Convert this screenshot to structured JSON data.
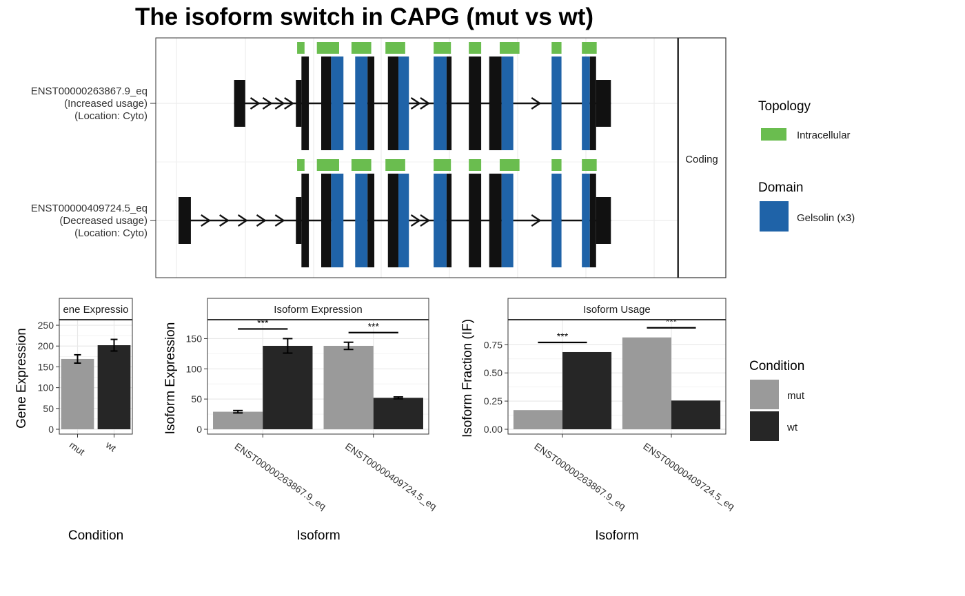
{
  "title": "The isoform switch in CAPG (mut vs wt)",
  "colors": {
    "exon": "#111111",
    "domain": "#1f63a8",
    "topology": "#6abd4f",
    "mut": "#9a9a9a",
    "wt": "#262626",
    "grid": "#e6e6e6",
    "panel_border": "#333333"
  },
  "structure": {
    "facet_label": "Coding",
    "x_range": [
      0,
      7.7
    ],
    "exons": [
      [
        0,
        0.15
      ],
      [
        0.9,
        1.1
      ],
      [
        1.2,
        1.35
      ],
      [
        1.55,
        1.8
      ],
      [
        2.1,
        2.3
      ],
      [
        2.45,
        2.65
      ],
      [
        2.8,
        3.0
      ],
      [
        3.3,
        3.6
      ],
      [
        3.7,
        3.9
      ],
      [
        4.15,
        4.4
      ],
      [
        4.6,
        4.8
      ],
      [
        5.0,
        5.2
      ],
      [
        5.6,
        5.8
      ],
      [
        5.85,
        6.05
      ],
      [
        6.1,
        6.35
      ],
      [
        6.5,
        6.75
      ],
      [
        6.9,
        7.1
      ],
      [
        7.15,
        7.35
      ]
    ],
    "transcripts": [
      {
        "label": "ENST00000263867.9_eq",
        "usage": "(Increased usage)",
        "location": "(Location: Cyto)",
        "start": 0.9,
        "end": 7.0,
        "segments": [
          {
            "x0": 0.9,
            "x1": 1.08,
            "type": "utr"
          },
          {
            "x0": 1.9,
            "x1": 1.99,
            "type": "utr"
          },
          {
            "x0": 1.99,
            "x1": 2.11,
            "type": "cds"
          },
          {
            "x0": 2.31,
            "x1": 2.47,
            "type": "cds"
          },
          {
            "x0": 2.47,
            "x1": 2.67,
            "type": "domain"
          },
          {
            "x0": 2.86,
            "x1": 3.06,
            "type": "domain"
          },
          {
            "x0": 3.06,
            "x1": 3.17,
            "type": "cds"
          },
          {
            "x0": 3.39,
            "x1": 3.56,
            "type": "cds"
          },
          {
            "x0": 3.56,
            "x1": 3.73,
            "type": "domain"
          },
          {
            "x0": 4.13,
            "x1": 4.34,
            "type": "domain"
          },
          {
            "x0": 4.34,
            "x1": 4.42,
            "type": "cds"
          },
          {
            "x0": 4.7,
            "x1": 4.9,
            "type": "cds"
          },
          {
            "x0": 5.03,
            "x1": 5.23,
            "type": "cds"
          },
          {
            "x0": 5.23,
            "x1": 5.42,
            "type": "domain"
          },
          {
            "x0": 6.04,
            "x1": 6.2,
            "type": "domain"
          },
          {
            "x0": 6.53,
            "x1": 6.66,
            "type": "domain"
          },
          {
            "x0": 6.66,
            "x1": 6.76,
            "type": "cds"
          },
          {
            "x0": 6.76,
            "x1": 7.0,
            "type": "utr"
          }
        ],
        "topology": [
          [
            1.92,
            2.04
          ],
          [
            2.24,
            2.6
          ],
          [
            2.8,
            3.12
          ],
          [
            3.35,
            3.67
          ],
          [
            4.13,
            4.41
          ],
          [
            4.7,
            4.9
          ],
          [
            5.2,
            5.52
          ],
          [
            6.04,
            6.2
          ],
          [
            6.53,
            6.77
          ]
        ],
        "arrows": [
          1.3,
          1.5,
          1.7,
          1.85,
          3.9,
          4.05,
          6.2,
          5.85
        ]
      },
      {
        "label": "ENST00000409724.5_eq",
        "usage": "(Decreased usage)",
        "location": "(Location: Cyto)",
        "start": 0.0,
        "end": 7.0,
        "segments": [
          {
            "x0": 0.0,
            "x1": 0.2,
            "type": "utr"
          },
          {
            "x0": 1.9,
            "x1": 1.99,
            "type": "utr"
          },
          {
            "x0": 1.99,
            "x1": 2.11,
            "type": "cds"
          },
          {
            "x0": 2.31,
            "x1": 2.47,
            "type": "cds"
          },
          {
            "x0": 2.47,
            "x1": 2.67,
            "type": "domain"
          },
          {
            "x0": 2.86,
            "x1": 3.06,
            "type": "domain"
          },
          {
            "x0": 3.06,
            "x1": 3.17,
            "type": "cds"
          },
          {
            "x0": 3.39,
            "x1": 3.56,
            "type": "cds"
          },
          {
            "x0": 3.56,
            "x1": 3.73,
            "type": "domain"
          },
          {
            "x0": 4.13,
            "x1": 4.34,
            "type": "domain"
          },
          {
            "x0": 4.34,
            "x1": 4.42,
            "type": "cds"
          },
          {
            "x0": 4.7,
            "x1": 4.9,
            "type": "cds"
          },
          {
            "x0": 5.03,
            "x1": 5.23,
            "type": "cds"
          },
          {
            "x0": 5.23,
            "x1": 5.42,
            "type": "domain"
          },
          {
            "x0": 6.04,
            "x1": 6.2,
            "type": "domain"
          },
          {
            "x0": 6.53,
            "x1": 6.66,
            "type": "domain"
          },
          {
            "x0": 6.66,
            "x1": 6.76,
            "type": "cds"
          },
          {
            "x0": 6.76,
            "x1": 7.0,
            "type": "utr"
          }
        ],
        "topology": [
          [
            1.92,
            2.04
          ],
          [
            2.24,
            2.6
          ],
          [
            2.8,
            3.12
          ],
          [
            3.35,
            3.67
          ],
          [
            4.13,
            4.41
          ],
          [
            4.7,
            4.9
          ],
          [
            5.2,
            5.52
          ],
          [
            6.04,
            6.2
          ],
          [
            6.53,
            6.77
          ]
        ],
        "arrows": [
          0.5,
          0.8,
          1.1,
          1.4,
          1.7,
          3.9,
          4.05,
          5.85,
          6.2
        ]
      }
    ]
  },
  "legends": {
    "topology": {
      "title": "Topology",
      "items": [
        "Intracellular"
      ]
    },
    "domain": {
      "title": "Domain",
      "items": [
        "Gelsolin (x3)"
      ]
    },
    "condition": {
      "title": "Condition",
      "items": [
        "mut",
        "wt"
      ]
    }
  },
  "chart_data": [
    {
      "type": "bar",
      "strip": "Gene Expression",
      "strip_visible": "ene Expressio",
      "categories": [
        "mut",
        "wt"
      ],
      "values": [
        169,
        202
      ],
      "errors": [
        10,
        14
      ],
      "xlabel": "Condition",
      "ylabel": "Gene Expression",
      "ylim": [
        0,
        260
      ],
      "yticks": [
        0,
        50,
        100,
        150,
        200,
        250
      ]
    },
    {
      "type": "bar",
      "strip": "Isoform Expression",
      "categories": [
        "ENST00000263867.9_eq",
        "ENST00000409724.5_eq"
      ],
      "series": [
        {
          "name": "mut",
          "values": [
            29,
            138
          ],
          "errors": [
            2,
            6
          ]
        },
        {
          "name": "wt",
          "values": [
            138,
            52
          ],
          "errors": [
            12,
            1.5
          ]
        }
      ],
      "significance": [
        "***",
        "***"
      ],
      "xlabel": "Isoform",
      "ylabel": "Isoform Expression",
      "ylim": [
        0,
        179
      ],
      "yticks": [
        0,
        50,
        100,
        150
      ]
    },
    {
      "type": "bar",
      "strip": "Isoform Usage",
      "categories": [
        "ENST00000263867.9_eq",
        "ENST00000409724.5_eq"
      ],
      "series": [
        {
          "name": "mut",
          "values": [
            0.17,
            0.815
          ]
        },
        {
          "name": "wt",
          "values": [
            0.685,
            0.255
          ]
        }
      ],
      "significance": [
        "***",
        "***"
      ],
      "xlabel": "Isoform",
      "ylabel": "Isoform Fraction (IF)",
      "ylim": [
        0,
        0.96
      ],
      "yticks": [
        "0.00",
        "0.25",
        "0.50",
        "0.75"
      ]
    }
  ]
}
